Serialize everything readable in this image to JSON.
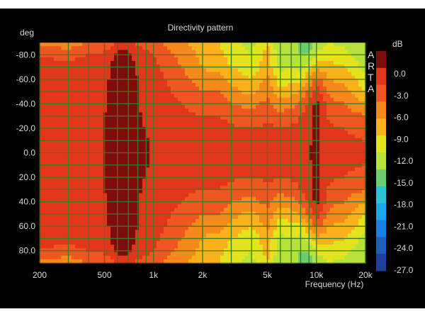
{
  "colors": {
    "background": "#000000",
    "text": "#d8d8d8",
    "grid": "#3a7a25",
    "scale": [
      "#7f0c0c",
      "#e2361b",
      "#ef5620",
      "#f58a1a",
      "#fbb21a",
      "#e3e31e",
      "#b6e23a",
      "#6bcf6e",
      "#2ec2d7",
      "#1aa6ef",
      "#1582e5",
      "#1b5fbf",
      "#1e3f9c"
    ]
  },
  "chart_data": {
    "type": "heatmap",
    "title": "Directivity pattern",
    "xlabel": "Frequency (Hz)",
    "ylabel": "deg",
    "x_scale": "log",
    "xlim": [
      200,
      20000
    ],
    "ylim": [
      -90,
      90
    ],
    "y_inverted": true,
    "x_ticks": [
      {
        "v": 200,
        "label": "200"
      },
      {
        "v": 500,
        "label": "500"
      },
      {
        "v": 1000,
        "label": "1k"
      },
      {
        "v": 2000,
        "label": "2k"
      },
      {
        "v": 5000,
        "label": "5k"
      },
      {
        "v": 10000,
        "label": "10k"
      },
      {
        "v": 20000,
        "label": "20k"
      }
    ],
    "x_grid": [
      200,
      300,
      400,
      500,
      600,
      700,
      800,
      900,
      1000,
      2000,
      3000,
      4000,
      5000,
      6000,
      7000,
      8000,
      9000,
      10000,
      20000
    ],
    "y_ticks": [
      {
        "v": -80,
        "label": "-80.0"
      },
      {
        "v": -60,
        "label": "-60.0"
      },
      {
        "v": -40,
        "label": "-40.0"
      },
      {
        "v": -20,
        "label": "-20.0"
      },
      {
        "v": 0,
        "label": "0.0"
      },
      {
        "v": 20,
        "label": "20.0"
      },
      {
        "v": 40,
        "label": "40.0"
      },
      {
        "v": 60,
        "label": "60.0"
      },
      {
        "v": 80,
        "label": "80.0"
      }
    ],
    "y_grid": [
      -80,
      -70,
      -60,
      -50,
      -40,
      -30,
      -20,
      -10,
      0,
      10,
      20,
      30,
      40,
      50,
      60,
      70,
      80
    ],
    "colorbar": {
      "unit": "dB",
      "labels": [
        "0.0",
        "-3.0",
        "-6.0",
        "-9.0",
        "-12.0",
        "-15.0",
        "-18.0",
        "-21.0",
        "-24.0",
        "-27.0"
      ],
      "levels": [
        3,
        0,
        -3,
        -6,
        -9,
        -12,
        -15,
        -18,
        -21,
        -24,
        -27,
        -30
      ]
    },
    "grid": true,
    "watermark": "ARTA",
    "legend": "right",
    "angles": [
      -90,
      -80,
      -70,
      -60,
      -50,
      -40,
      -30,
      -20,
      -10,
      0
    ],
    "frequencies": [
      200,
      300,
      400,
      500,
      600,
      700,
      800,
      1000,
      1200,
      1500,
      2000,
      2500,
      3000,
      4000,
      5000,
      6000,
      7000,
      8000,
      9000,
      10000,
      12000,
      15000,
      20000
    ],
    "values_db": [
      [
        -7,
        -8,
        -6,
        -6,
        -2,
        -2,
        -4,
        -5,
        -7,
        -8,
        -11,
        -12,
        -14,
        -16,
        -12,
        -18,
        -17,
        -19,
        -20,
        -17,
        -15,
        -16,
        -18
      ],
      [
        -3,
        -4,
        -3,
        -2,
        1,
        1,
        -1,
        -3,
        -5,
        -7,
        -10,
        -11,
        -13,
        -15,
        -11,
        -17,
        -16,
        -18,
        -18,
        -14,
        -13,
        -14,
        -17
      ],
      [
        -2,
        -2,
        -1.5,
        -1,
        1,
        1,
        -0.5,
        -2,
        -4,
        -6,
        -9,
        -10,
        -12,
        -14,
        -10,
        -16,
        -15,
        -16,
        -14,
        -10,
        -11,
        -12,
        -16
      ],
      [
        -1.5,
        -1.5,
        -1,
        -0.5,
        1,
        1,
        0,
        -1.5,
        -3,
        -5,
        -8,
        -8,
        -10,
        -12,
        -8,
        -14,
        -13,
        -13,
        -9,
        -5,
        -9,
        -10,
        -14
      ],
      [
        -1.2,
        -1,
        -0.8,
        -0.3,
        1,
        1,
        0,
        -1,
        -2.5,
        -4,
        -6,
        -6,
        -8,
        -10,
        -7,
        -11,
        -10,
        -9,
        -5,
        -1,
        -7,
        -8,
        -12
      ],
      [
        -1,
        -0.8,
        -0.6,
        -0.2,
        1,
        1,
        0,
        -1,
        -2,
        -3,
        -4.5,
        -4.5,
        -6,
        -7,
        -5,
        -8,
        -7,
        -5,
        -2.5,
        1,
        -5,
        -6,
        -9
      ],
      [
        -0.8,
        -0.6,
        -0.4,
        0,
        1,
        1,
        0.2,
        -0.6,
        -1.5,
        -2.5,
        -3,
        -3,
        -4,
        -5,
        -3.5,
        -5,
        -4.5,
        -3,
        -1.2,
        1,
        -4,
        -4.5,
        -6
      ],
      [
        -0.6,
        -0.4,
        -0.2,
        0,
        1,
        1,
        0.3,
        -0.4,
        -1,
        -1.5,
        -2,
        -2,
        -2.5,
        -3,
        -2.5,
        -3,
        -2.5,
        -2,
        -0.5,
        1,
        -2.5,
        -3,
        -4
      ],
      [
        -0.5,
        -0.3,
        -0.1,
        0,
        1,
        1,
        0.4,
        -0.2,
        -0.6,
        -1,
        -1,
        -1.2,
        -1.5,
        -2,
        -2,
        -2,
        -1.8,
        -1.2,
        -0.3,
        1,
        -2,
        -2.5,
        -3
      ],
      [
        -0.5,
        -0.3,
        -0.1,
        0,
        1,
        1,
        0.4,
        -0.2,
        -0.5,
        -0.8,
        -0.8,
        -1,
        -1.2,
        -1.5,
        -1.5,
        -1.5,
        -1.5,
        -1,
        -0.2,
        1,
        -1.8,
        -2.2,
        -2.8
      ]
    ]
  }
}
